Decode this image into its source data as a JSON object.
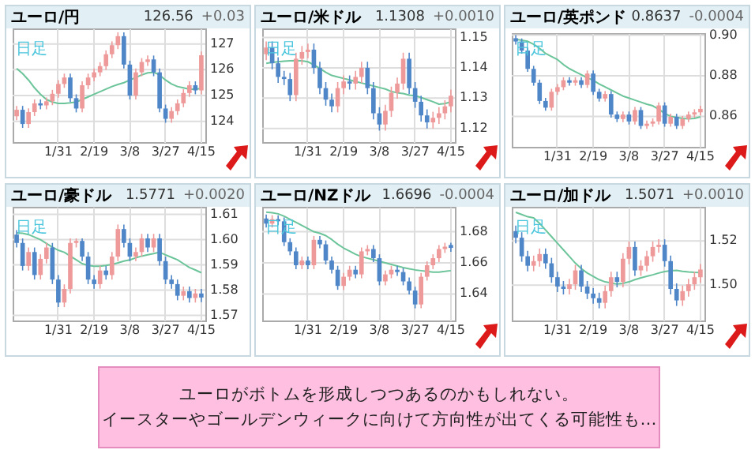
{
  "chart_data": [
    {
      "type": "candlestick",
      "title": "ユーロ/円",
      "annotations": [
        "126.56",
        "+0.03",
        "日足"
      ],
      "categories": [
        null,
        null,
        null,
        null,
        null,
        null,
        null,
        "1/31",
        null,
        null,
        null,
        null,
        null,
        "2/19",
        null,
        null,
        null,
        null,
        null,
        "3/8",
        null,
        null,
        null,
        null,
        null,
        "3/27",
        null,
        null,
        null,
        null,
        null,
        "4/15"
      ],
      "ohlc": [
        [
          124.2,
          124.6,
          124.05,
          124.45
        ],
        [
          124.45,
          124.6,
          123.75,
          123.9
        ],
        [
          123.9,
          124.51,
          123.75,
          124.36
        ],
        [
          124.36,
          124.85,
          124.21,
          124.7
        ],
        [
          124.7,
          124.85,
          124.47,
          124.62
        ],
        [
          124.62,
          124.93,
          124.47,
          124.78
        ],
        [
          124.78,
          125.22,
          124.63,
          125.07
        ],
        [
          125.07,
          125.6,
          124.92,
          125.45
        ],
        [
          125.45,
          125.85,
          125.3,
          125.7
        ],
        [
          125.7,
          125.85,
          124.75,
          124.9
        ],
        [
          124.9,
          125.05,
          124.35,
          124.5
        ],
        [
          124.5,
          125.55,
          124.35,
          125.4
        ],
        [
          125.4,
          125.85,
          125.25,
          125.7
        ],
        [
          125.7,
          126.05,
          125.55,
          125.9
        ],
        [
          125.9,
          126.29,
          125.75,
          126.14
        ],
        [
          126.14,
          126.75,
          125.99,
          126.6
        ],
        [
          126.6,
          127.1,
          126.45,
          126.95
        ],
        [
          126.95,
          127.45,
          126.8,
          127.3
        ],
        [
          127.3,
          127.45,
          126.05,
          126.2
        ],
        [
          126.2,
          126.35,
          124.85,
          125.0
        ],
        [
          125.0,
          126.05,
          124.85,
          125.9
        ],
        [
          125.9,
          126.45,
          125.75,
          126.3
        ],
        [
          126.3,
          126.55,
          126.15,
          126.4
        ],
        [
          126.4,
          126.55,
          125.75,
          125.9
        ],
        [
          125.9,
          126.05,
          124.35,
          124.5
        ],
        [
          124.5,
          124.65,
          123.95,
          124.1
        ],
        [
          124.1,
          124.55,
          123.95,
          124.4
        ],
        [
          124.4,
          124.85,
          124.25,
          124.7
        ],
        [
          124.7,
          125.25,
          124.55,
          125.1
        ],
        [
          125.1,
          125.55,
          124.95,
          125.4
        ],
        [
          125.4,
          125.55,
          125.05,
          125.2
        ],
        [
          125.2,
          126.71,
          125.05,
          126.56
        ]
      ],
      "series": [
        {
          "type": "line",
          "color": "#6cc59a",
          "values": [
            126.05,
            125.85,
            125.6,
            125.3,
            125.05,
            124.85,
            124.75,
            124.7,
            124.7,
            124.72,
            124.75,
            124.85,
            124.95,
            125.05,
            125.15,
            125.25,
            125.35,
            125.43,
            125.5,
            125.6,
            125.7,
            125.8,
            125.88,
            125.9,
            125.8,
            125.6,
            125.45,
            125.35,
            125.3,
            125.25,
            125.25,
            125.28
          ]
        }
      ],
      "ylim": [
        123.2,
        127.6
      ],
      "yticks": [
        124,
        125,
        126,
        127
      ],
      "grid": true
    },
    {
      "type": "candlestick",
      "title": "ユーロ/米ドル",
      "annotations": [
        "1.1308",
        "+0.0010",
        "日足"
      ],
      "categories": [
        null,
        null,
        null,
        null,
        null,
        null,
        null,
        "1/31",
        null,
        null,
        null,
        null,
        null,
        "2/19",
        null,
        null,
        null,
        null,
        null,
        "3/8",
        null,
        null,
        null,
        null,
        null,
        "3/27",
        null,
        null,
        null,
        null,
        null,
        "4/15"
      ],
      "ohlc": [
        [
          1.1445,
          1.1487,
          1.1425,
          1.1467
        ],
        [
          1.1467,
          1.1487,
          1.1395,
          1.1415
        ],
        [
          1.1415,
          1.1435,
          1.135,
          1.137
        ],
        [
          1.137,
          1.139,
          1.1343,
          1.1363
        ],
        [
          1.1363,
          1.1383,
          1.129,
          1.131
        ],
        [
          1.131,
          1.145,
          1.129,
          1.143
        ],
        [
          1.143,
          1.1472,
          1.141,
          1.1452
        ],
        [
          1.1452,
          1.148,
          1.1432,
          1.146
        ],
        [
          1.146,
          1.148,
          1.138,
          1.14
        ],
        [
          1.14,
          1.142,
          1.1313,
          1.1333
        ],
        [
          1.1333,
          1.1353,
          1.1275,
          1.1295
        ],
        [
          1.1295,
          1.1315,
          1.1253,
          1.1273
        ],
        [
          1.1273,
          1.1353,
          1.1253,
          1.1333
        ],
        [
          1.1333,
          1.1375,
          1.1313,
          1.1355
        ],
        [
          1.1355,
          1.1375,
          1.1328,
          1.1348
        ],
        [
          1.1348,
          1.139,
          1.1328,
          1.137
        ],
        [
          1.137,
          1.142,
          1.135,
          1.14
        ],
        [
          1.14,
          1.142,
          1.1313,
          1.1333
        ],
        [
          1.1333,
          1.1353,
          1.123,
          1.125
        ],
        [
          1.125,
          1.127,
          1.1193,
          1.1213
        ],
        [
          1.1213,
          1.1278,
          1.1193,
          1.1258
        ],
        [
          1.1258,
          1.1338,
          1.1238,
          1.1318
        ],
        [
          1.1318,
          1.1368,
          1.1298,
          1.1348
        ],
        [
          1.1348,
          1.145,
          1.1328,
          1.143
        ],
        [
          1.143,
          1.145,
          1.1313,
          1.1333
        ],
        [
          1.1333,
          1.1353,
          1.1268,
          1.1288
        ],
        [
          1.1288,
          1.1308,
          1.1223,
          1.1243
        ],
        [
          1.1243,
          1.1263,
          1.12,
          1.122
        ],
        [
          1.122,
          1.1255,
          1.12,
          1.1235
        ],
        [
          1.1235,
          1.127,
          1.1215,
          1.125
        ],
        [
          1.125,
          1.1293,
          1.123,
          1.1273
        ],
        [
          1.1273,
          1.1328,
          1.1253,
          1.1308
        ]
      ],
      "series": [
        {
          "type": "line",
          "color": "#6cc59a",
          "values": [
            1.1415,
            1.1418,
            1.142,
            1.1422,
            1.1423,
            1.1424,
            1.1423,
            1.142,
            1.141,
            1.1398,
            1.1385,
            1.1375,
            1.137,
            1.1365,
            1.136,
            1.1355,
            1.135,
            1.1345,
            1.134,
            1.1335,
            1.133,
            1.1322,
            1.1318,
            1.1315,
            1.131,
            1.1308,
            1.1302,
            1.1295,
            1.1288,
            1.128,
            1.1282,
            1.1288
          ]
        }
      ],
      "ylim": [
        1.1155,
        1.153
      ],
      "yticks": [
        1.12,
        1.13,
        1.14,
        1.15
      ],
      "grid": true
    },
    {
      "type": "candlestick",
      "title": "ユーロ/英ポンド",
      "annotations": [
        "0.8637",
        "-0.0004",
        "日足"
      ],
      "categories": [
        null,
        null,
        null,
        null,
        null,
        null,
        null,
        "1/31",
        null,
        null,
        null,
        null,
        null,
        "2/19",
        null,
        null,
        null,
        null,
        null,
        "3/8",
        null,
        null,
        null,
        null,
        null,
        "3/27",
        null,
        null,
        null,
        null,
        null,
        "4/15"
      ],
      "ohlc": [
        [
          0.8985,
          0.9,
          0.8954,
          0.8969
        ],
        [
          0.8969,
          0.8984,
          0.8909,
          0.8924
        ],
        [
          0.8924,
          0.8939,
          0.8819,
          0.8834
        ],
        [
          0.8834,
          0.8849,
          0.8751,
          0.8766
        ],
        [
          0.8766,
          0.8781,
          0.8661,
          0.8676
        ],
        [
          0.8676,
          0.8691,
          0.8628,
          0.8643
        ],
        [
          0.8643,
          0.8736,
          0.8628,
          0.8721
        ],
        [
          0.8721,
          0.8759,
          0.8706,
          0.8744
        ],
        [
          0.8744,
          0.8793,
          0.8729,
          0.8778
        ],
        [
          0.8778,
          0.8793,
          0.8751,
          0.8766
        ],
        [
          0.8766,
          0.8793,
          0.8751,
          0.8778
        ],
        [
          0.8778,
          0.8793,
          0.874,
          0.8755
        ],
        [
          0.8755,
          0.8826,
          0.874,
          0.8811
        ],
        [
          0.8811,
          0.8826,
          0.8706,
          0.8721
        ],
        [
          0.8721,
          0.8736,
          0.8673,
          0.8688
        ],
        [
          0.8688,
          0.8725,
          0.8673,
          0.871
        ],
        [
          0.871,
          0.8725,
          0.8594,
          0.8609
        ],
        [
          0.8609,
          0.8624,
          0.8572,
          0.8587
        ],
        [
          0.8587,
          0.8624,
          0.8572,
          0.8609
        ],
        [
          0.8609,
          0.8624,
          0.856,
          0.8575
        ],
        [
          0.8575,
          0.8646,
          0.856,
          0.8631
        ],
        [
          0.8631,
          0.8646,
          0.8538,
          0.8553
        ],
        [
          0.8553,
          0.8579,
          0.8538,
          0.8564
        ],
        [
          0.8564,
          0.859,
          0.8549,
          0.8575
        ],
        [
          0.8575,
          0.8669,
          0.856,
          0.8654
        ],
        [
          0.8654,
          0.8669,
          0.8549,
          0.8564
        ],
        [
          0.8564,
          0.8613,
          0.8549,
          0.8598
        ],
        [
          0.8598,
          0.8613,
          0.8538,
          0.8553
        ],
        [
          0.8553,
          0.8602,
          0.8538,
          0.8587
        ],
        [
          0.8587,
          0.8624,
          0.8572,
          0.8609
        ],
        [
          0.8609,
          0.8635,
          0.8594,
          0.862
        ],
        [
          0.862,
          0.8652,
          0.8605,
          0.8637
        ]
      ],
      "series": [
        {
          "type": "line",
          "color": "#6cc59a",
          "values": [
            0.898,
            0.8975,
            0.897,
            0.8955,
            0.8935,
            0.891,
            0.8895,
            0.888,
            0.8855,
            0.8835,
            0.882,
            0.8805,
            0.879,
            0.8778,
            0.876,
            0.8745,
            0.873,
            0.8715,
            0.87,
            0.869,
            0.868,
            0.867,
            0.866,
            0.8652,
            0.8635,
            0.8615,
            0.86,
            0.8595,
            0.859,
            0.8588,
            0.859,
            0.8598
          ]
        }
      ],
      "ylim": [
        0.845,
        0.901
      ],
      "yticks": [
        0.86,
        0.88,
        {
          "value": 0.9,
          "label": "0.90"
        }
      ],
      "grid": true
    },
    {
      "type": "candlestick",
      "title": "ユーロ/豪ドル",
      "annotations": [
        "1.5771",
        "+0.0020",
        "日足"
      ],
      "categories": [
        null,
        null,
        null,
        null,
        null,
        null,
        null,
        "1/31",
        null,
        null,
        null,
        null,
        null,
        "2/19",
        null,
        null,
        null,
        null,
        null,
        "3/8",
        null,
        null,
        null,
        null,
        null,
        "3/27",
        null,
        null,
        null,
        null,
        null,
        "4/15"
      ],
      "ohlc": [
        [
          1.602,
          1.6038,
          1.5969,
          1.5987
        ],
        [
          1.5987,
          1.6005,
          1.5878,
          1.5896
        ],
        [
          1.5896,
          1.5969,
          1.5878,
          1.5951
        ],
        [
          1.5951,
          1.5969,
          1.5842,
          1.586
        ],
        [
          1.586,
          1.5942,
          1.5842,
          1.5924
        ],
        [
          1.5924,
          1.5987,
          1.5906,
          1.5969
        ],
        [
          1.5969,
          1.5987,
          1.5824,
          1.5842
        ],
        [
          1.5842,
          1.586,
          1.5733,
          1.5751
        ],
        [
          1.5751,
          1.5823,
          1.5733,
          1.5805
        ],
        [
          1.5805,
          1.6005,
          1.5787,
          1.5987
        ],
        [
          1.5987,
          1.6005,
          1.5969,
          1.5995
        ],
        [
          1.5995,
          1.6005,
          1.5915,
          1.5933
        ],
        [
          1.5933,
          1.5951,
          1.5824,
          1.5842
        ],
        [
          1.5842,
          1.586,
          1.5806,
          1.5824
        ],
        [
          1.5824,
          1.5896,
          1.5806,
          1.5878
        ],
        [
          1.5878,
          1.5896,
          1.5842,
          1.586
        ],
        [
          1.586,
          1.5951,
          1.5842,
          1.5933
        ],
        [
          1.5933,
          1.606,
          1.5915,
          1.6042
        ],
        [
          1.6042,
          1.606,
          1.5969,
          1.5987
        ],
        [
          1.5987,
          1.6005,
          1.5915,
          1.5933
        ],
        [
          1.5933,
          1.5969,
          1.5915,
          1.5951
        ],
        [
          1.5951,
          1.6023,
          1.5933,
          1.6005
        ],
        [
          1.6005,
          1.6023,
          1.5951,
          1.5969
        ],
        [
          1.5969,
          1.6023,
          1.5951,
          1.6005
        ],
        [
          1.6005,
          1.6023,
          1.5897,
          1.5915
        ],
        [
          1.5915,
          1.5933,
          1.5824,
          1.5842
        ],
        [
          1.5842,
          1.586,
          1.5806,
          1.5824
        ],
        [
          1.5824,
          1.5842,
          1.576,
          1.5778
        ],
        [
          1.5778,
          1.5814,
          1.576,
          1.5796
        ],
        [
          1.5796,
          1.5814,
          1.5751,
          1.5769
        ],
        [
          1.5769,
          1.5805,
          1.5751,
          1.5787
        ],
        [
          1.5787,
          1.5805,
          1.5753,
          1.5771
        ]
      ],
      "series": [
        {
          "type": "line",
          "color": "#6cc59a",
          "values": [
            1.6027,
            1.6025,
            1.602,
            1.601,
            1.6,
            1.5985,
            1.597,
            1.5958,
            1.595,
            1.5935,
            1.592,
            1.5905,
            1.5898,
            1.5895,
            1.5895,
            1.5898,
            1.5902,
            1.5908,
            1.5915,
            1.592,
            1.5928,
            1.5935,
            1.594,
            1.5945,
            1.595,
            1.594,
            1.593,
            1.592,
            1.5905,
            1.589,
            1.588,
            1.5869
          ]
        }
      ],
      "ylim": [
        1.568,
        1.613
      ],
      "yticks": [
        1.57,
        1.58,
        1.59,
        {
          "value": 1.6,
          "label": "1.60"
        },
        1.61
      ],
      "grid": true
    },
    {
      "type": "candlestick",
      "title": "ユーロ/NZドル",
      "annotations": [
        "1.6696",
        "-0.0004",
        "日足"
      ],
      "categories": [
        null,
        null,
        null,
        null,
        null,
        null,
        null,
        "1/31",
        null,
        null,
        null,
        null,
        null,
        "2/19",
        null,
        null,
        null,
        null,
        null,
        "3/8",
        null,
        null,
        null,
        null,
        null,
        "3/27",
        null,
        null,
        null,
        null,
        null,
        "4/15"
      ],
      "ohlc": [
        [
          1.6885,
          1.691,
          1.6827,
          1.6852
        ],
        [
          1.6852,
          1.6906,
          1.6827,
          1.6881
        ],
        [
          1.6881,
          1.6906,
          1.6842,
          1.6867
        ],
        [
          1.6867,
          1.6892,
          1.6708,
          1.6733
        ],
        [
          1.6733,
          1.6758,
          1.6649,
          1.6674
        ],
        [
          1.6674,
          1.6699,
          1.656,
          1.6585
        ],
        [
          1.6585,
          1.664,
          1.656,
          1.6615
        ],
        [
          1.6615,
          1.664,
          1.656,
          1.6585
        ],
        [
          1.6585,
          1.6773,
          1.656,
          1.6748
        ],
        [
          1.6748,
          1.6773,
          1.6694,
          1.6719
        ],
        [
          1.6719,
          1.6744,
          1.659,
          1.6615
        ],
        [
          1.6615,
          1.664,
          1.6531,
          1.6556
        ],
        [
          1.6556,
          1.6581,
          1.6427,
          1.6452
        ],
        [
          1.6452,
          1.6536,
          1.6427,
          1.6511
        ],
        [
          1.6511,
          1.6581,
          1.6486,
          1.6556
        ],
        [
          1.6556,
          1.6581,
          1.6501,
          1.6526
        ],
        [
          1.6526,
          1.6699,
          1.6501,
          1.6674
        ],
        [
          1.6674,
          1.6714,
          1.6649,
          1.6689
        ],
        [
          1.6689,
          1.6714,
          1.6605,
          1.663
        ],
        [
          1.663,
          1.6655,
          1.6456,
          1.6481
        ],
        [
          1.6481,
          1.6551,
          1.6456,
          1.6526
        ],
        [
          1.6526,
          1.6581,
          1.6501,
          1.6556
        ],
        [
          1.6556,
          1.6581,
          1.6516,
          1.6541
        ],
        [
          1.6541,
          1.6566,
          1.6456,
          1.6481
        ],
        [
          1.6481,
          1.6506,
          1.6397,
          1.6422
        ],
        [
          1.6422,
          1.6447,
          1.6308,
          1.6333
        ],
        [
          1.6333,
          1.6536,
          1.6308,
          1.6511
        ],
        [
          1.6511,
          1.661,
          1.6486,
          1.6585
        ],
        [
          1.6585,
          1.6655,
          1.656,
          1.663
        ],
        [
          1.663,
          1.6714,
          1.6605,
          1.6689
        ],
        [
          1.6689,
          1.6729,
          1.6664,
          1.6704
        ],
        [
          1.6715,
          1.6729,
          1.6671,
          1.6696
        ]
      ],
      "series": [
        {
          "type": "line",
          "color": "#6cc59a",
          "values": [
            1.6926,
            1.6922,
            1.6915,
            1.69,
            1.688,
            1.686,
            1.684,
            1.682,
            1.68,
            1.679,
            1.6775,
            1.675,
            1.672,
            1.6695,
            1.6675,
            1.6655,
            1.664,
            1.663,
            1.662,
            1.661,
            1.66,
            1.659,
            1.658,
            1.657,
            1.6562,
            1.6555,
            1.655,
            1.6545,
            1.6541,
            1.6541,
            1.6545,
            1.655
          ]
        }
      ],
      "ylim": [
        1.623,
        1.696
      ],
      "yticks": [
        1.64,
        1.66,
        1.68
      ],
      "grid": true
    },
    {
      "type": "candlestick",
      "title": "ユーロ/加ドル",
      "annotations": [
        "1.5071",
        "+0.0010",
        "日足"
      ],
      "categories": [
        null,
        null,
        null,
        null,
        null,
        null,
        null,
        "1/31",
        null,
        null,
        null,
        null,
        null,
        "2/19",
        null,
        null,
        null,
        null,
        null,
        "3/8",
        null,
        null,
        null,
        null,
        null,
        "3/27",
        null,
        null,
        null,
        null,
        null,
        "4/15"
      ],
      "ohlc": [
        [
          1.5245,
          1.527,
          1.519,
          1.5215
        ],
        [
          1.5215,
          1.524,
          1.5106,
          1.5131
        ],
        [
          1.5131,
          1.5156,
          1.5063,
          1.5088
        ],
        [
          1.5088,
          1.5134,
          1.5063,
          1.5109
        ],
        [
          1.5109,
          1.5166,
          1.5084,
          1.5141
        ],
        [
          1.5141,
          1.5166,
          1.5074,
          1.5099
        ],
        [
          1.5099,
          1.5124,
          1.5011,
          1.5036
        ],
        [
          1.5036,
          1.5061,
          1.4969,
          1.4994
        ],
        [
          1.4994,
          1.5019,
          1.4958,
          1.4983
        ],
        [
          1.4983,
          1.5029,
          1.4958,
          1.5004
        ],
        [
          1.5004,
          1.5092,
          1.4979,
          1.5067
        ],
        [
          1.5067,
          1.5092,
          1.4969,
          1.4994
        ],
        [
          1.4994,
          1.5019,
          1.4937,
          1.4962
        ],
        [
          1.4962,
          1.4987,
          1.4916,
          1.4941
        ],
        [
          1.4941,
          1.4966,
          1.4895,
          1.492
        ],
        [
          1.492,
          1.4998,
          1.4895,
          1.4973
        ],
        [
          1.4973,
          1.5061,
          1.4948,
          1.5036
        ],
        [
          1.5036,
          1.5061,
          1.499,
          1.5015
        ],
        [
          1.5015,
          1.5145,
          1.499,
          1.512
        ],
        [
          1.512,
          1.5198,
          1.5095,
          1.5173
        ],
        [
          1.5173,
          1.5198,
          1.5042,
          1.5067
        ],
        [
          1.5067,
          1.5113,
          1.5042,
          1.5088
        ],
        [
          1.5088,
          1.5156,
          1.5063,
          1.5131
        ],
        [
          1.5131,
          1.5198,
          1.5106,
          1.5173
        ],
        [
          1.5173,
          1.5208,
          1.5148,
          1.5183
        ],
        [
          1.5183,
          1.5208,
          1.5084,
          1.5109
        ],
        [
          1.5109,
          1.5134,
          1.4958,
          1.4983
        ],
        [
          1.4983,
          1.5008,
          1.4906,
          1.4931
        ],
        [
          1.4931,
          1.4998,
          1.4906,
          1.4973
        ],
        [
          1.4973,
          1.5029,
          1.4948,
          1.5004
        ],
        [
          1.5004,
          1.5061,
          1.4979,
          1.5036
        ],
        [
          1.5036,
          1.5096,
          1.5011,
          1.5071
        ]
      ],
      "series": [
        {
          "type": "line",
          "color": "#6cc59a",
          "values": [
            1.533,
            1.532,
            1.531,
            1.5305,
            1.528,
            1.525,
            1.522,
            1.519,
            1.516,
            1.513,
            1.51,
            1.5075,
            1.5055,
            1.504,
            1.5025,
            1.5015,
            1.501,
            1.5005,
            1.5008,
            1.5015,
            1.5025,
            1.5033,
            1.504,
            1.5047,
            1.5055,
            1.5062,
            1.5065,
            1.5067,
            1.5063,
            1.506,
            1.5058,
            1.5057
          ]
        }
      ],
      "ylim": [
        1.484,
        1.5355
      ],
      "yticks": [
        {
          "value": 1.5,
          "label": "1.50"
        },
        1.52
      ],
      "grid": true
    },
    {
      "type": "other",
      "annotations": [
        "ユーロがボトムを形成しつつあるのかもしれない。",
        "イースターやゴールデンウィークに向けて方向性が出てくる可能性も…"
      ]
    }
  ]
}
